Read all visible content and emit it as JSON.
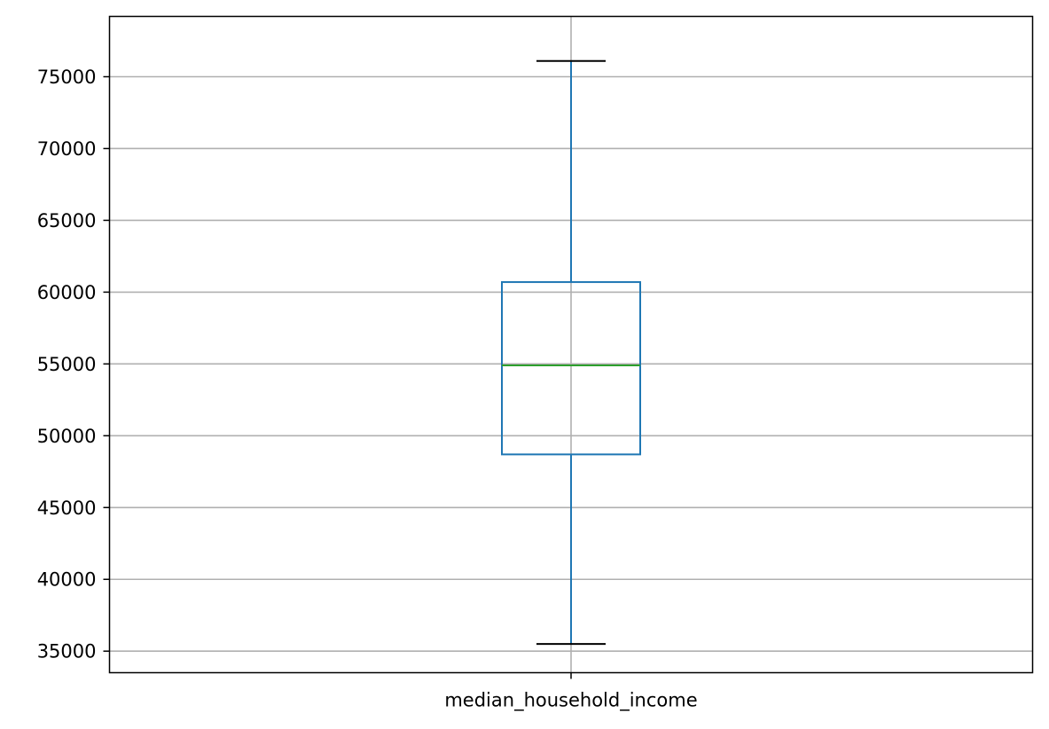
{
  "chart_data": {
    "type": "box",
    "categories": [
      "median_household_income"
    ],
    "boxes": [
      {
        "label": "median_household_income",
        "whisker_low": 35500,
        "q1": 48700,
        "median": 54900,
        "q3": 60700,
        "whisker_high": 76100
      }
    ],
    "y_ticks": [
      35000,
      40000,
      45000,
      50000,
      55000,
      60000,
      65000,
      70000,
      75000
    ],
    "ylim": [
      33500,
      79200
    ],
    "grid": true,
    "xlabel": "",
    "ylabel": "",
    "title": "",
    "colors": {
      "box": "#1f77b4",
      "median": "#2ca02c",
      "caps": "#000000",
      "grid": "#b0b0b0",
      "axes": "#000000"
    }
  }
}
